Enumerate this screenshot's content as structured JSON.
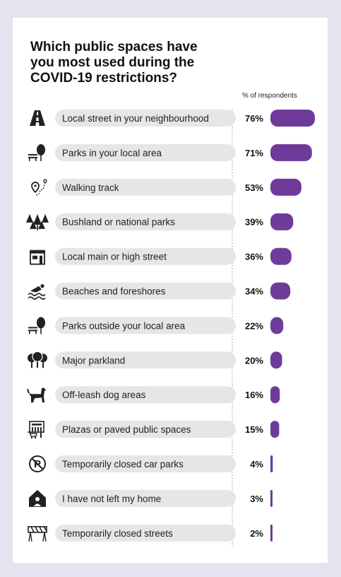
{
  "title_lines": [
    "Which public spaces have",
    "you most used during the",
    "COVID-19 restrictions?"
  ],
  "unit_label": "% of respondents",
  "colors": {
    "bar": "#6f3b9b",
    "pill": "#e6e6e7",
    "background": "#e7e2f0",
    "icon": "#222222"
  },
  "chart_data": {
    "type": "bar",
    "orientation": "horizontal",
    "title": "Which public spaces have you most used during the COVID-19 restrictions?",
    "value_label": "% of respondents",
    "categories": [
      "Local street in your neighbourhood",
      "Parks in your local area",
      "Walking track",
      "Bushland or national parks",
      "Local main or high street",
      "Beaches and foreshores",
      "Parks outside your local area",
      "Major parkland",
      "Off-leash dog areas",
      "Plazas or paved public spaces",
      "Temporarily closed car parks",
      "I have not left my home",
      "Temporarily closed streets"
    ],
    "values": [
      76,
      71,
      53,
      39,
      36,
      34,
      22,
      20,
      16,
      15,
      4,
      3,
      2
    ],
    "value_labels": [
      "76%",
      "71%",
      "53%",
      "39%",
      "36%",
      "34%",
      "22%",
      "20%",
      "16%",
      "15%",
      "4%",
      "3%",
      "2%"
    ],
    "icons": [
      "road-icon",
      "park-bench-tree-icon",
      "walking-track-icon",
      "bushland-trees-icon",
      "shopfront-icon",
      "swimmer-icon",
      "park-bench-tree-icon",
      "parkland-trees-icon",
      "dog-icon",
      "plaza-building-icon",
      "no-parking-icon",
      "home-person-icon",
      "road-barrier-icon"
    ]
  }
}
